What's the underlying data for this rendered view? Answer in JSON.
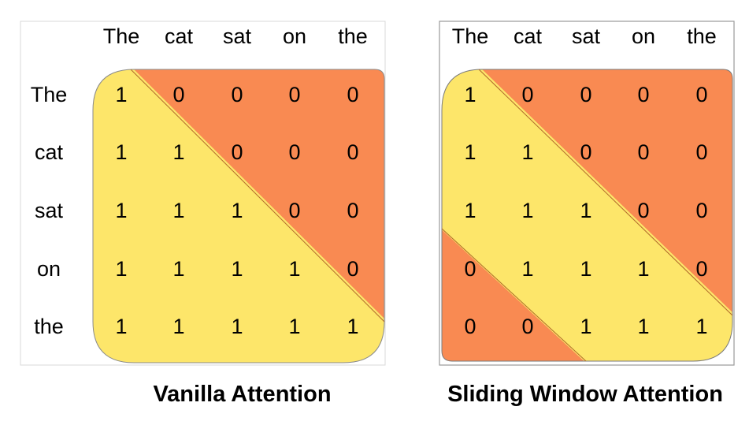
{
  "colors": {
    "attend": "#fde66a",
    "masked": "#f98a52",
    "border": "#b0b0b0",
    "text": "#000000"
  },
  "diagrams": [
    {
      "caption": "Vanilla Attention",
      "col_headers": [
        "The",
        "cat",
        "sat",
        "on",
        "the"
      ],
      "row_headers": [
        "The",
        "cat",
        "sat",
        "on",
        "the"
      ],
      "matrix": [
        [
          "1",
          "0",
          "0",
          "0",
          "0"
        ],
        [
          "1",
          "1",
          "0",
          "0",
          "0"
        ],
        [
          "1",
          "1",
          "1",
          "0",
          "0"
        ],
        [
          "1",
          "1",
          "1",
          "1",
          "0"
        ],
        [
          "1",
          "1",
          "1",
          "1",
          "1"
        ]
      ]
    },
    {
      "caption": "Sliding Window Attention",
      "col_headers": [
        "The",
        "cat",
        "sat",
        "on",
        "the"
      ],
      "row_headers": [],
      "matrix": [
        [
          "1",
          "0",
          "0",
          "0",
          "0"
        ],
        [
          "1",
          "1",
          "0",
          "0",
          "0"
        ],
        [
          "1",
          "1",
          "1",
          "0",
          "0"
        ],
        [
          "0",
          "1",
          "1",
          "1",
          "0"
        ],
        [
          "0",
          "0",
          "1",
          "1",
          "1"
        ]
      ]
    }
  ]
}
